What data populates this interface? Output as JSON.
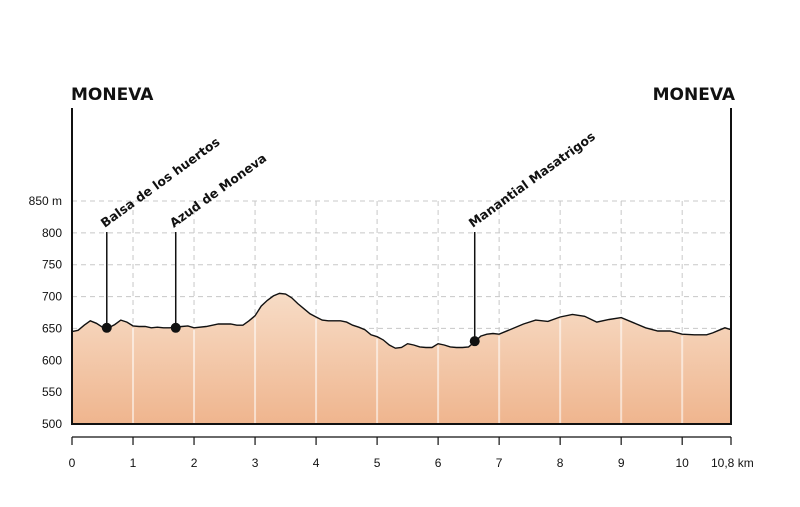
{
  "chart_data": {
    "type": "area",
    "title": "",
    "xlabel": "",
    "ylabel": "",
    "start_label": "MONEVA",
    "end_label": "MONEVA",
    "xlim": [
      0,
      10.8
    ],
    "ylim": [
      500,
      850
    ],
    "x_ticks": [
      {
        "value": 0,
        "label": "0"
      },
      {
        "value": 1,
        "label": "1"
      },
      {
        "value": 2,
        "label": "2"
      },
      {
        "value": 3,
        "label": "3"
      },
      {
        "value": 4,
        "label": "4"
      },
      {
        "value": 5,
        "label": "5"
      },
      {
        "value": 6,
        "label": "6"
      },
      {
        "value": 7,
        "label": "7"
      },
      {
        "value": 8,
        "label": "8"
      },
      {
        "value": 9,
        "label": "9"
      },
      {
        "value": 10,
        "label": "10"
      },
      {
        "value": 10.8,
        "label": "10,8 km"
      }
    ],
    "y_ticks": [
      {
        "value": 500,
        "label": "500"
      },
      {
        "value": 550,
        "label": "550"
      },
      {
        "value": 600,
        "label": "600"
      },
      {
        "value": 650,
        "label": "650"
      },
      {
        "value": 700,
        "label": "700"
      },
      {
        "value": 750,
        "label": "750"
      },
      {
        "value": 800,
        "label": "800"
      },
      {
        "value": 850,
        "label": "850 m"
      }
    ],
    "grid": true,
    "colors": {
      "fill_top": "#f7dcc6",
      "fill_bottom": "#efb58e",
      "line": "#111111",
      "grid": "#c8c8c8"
    },
    "profile": [
      [
        0.0,
        645
      ],
      [
        0.1,
        647
      ],
      [
        0.2,
        655
      ],
      [
        0.3,
        662
      ],
      [
        0.4,
        658
      ],
      [
        0.5,
        652
      ],
      [
        0.6,
        651
      ],
      [
        0.7,
        656
      ],
      [
        0.8,
        663
      ],
      [
        0.9,
        660
      ],
      [
        1.0,
        654
      ],
      [
        1.1,
        653
      ],
      [
        1.2,
        653
      ],
      [
        1.3,
        651
      ],
      [
        1.4,
        652
      ],
      [
        1.5,
        651
      ],
      [
        1.6,
        651
      ],
      [
        1.7,
        652
      ],
      [
        1.8,
        653
      ],
      [
        1.9,
        654
      ],
      [
        2.0,
        651
      ],
      [
        2.2,
        653
      ],
      [
        2.4,
        657
      ],
      [
        2.6,
        657
      ],
      [
        2.7,
        655
      ],
      [
        2.8,
        655
      ],
      [
        2.9,
        662
      ],
      [
        3.0,
        670
      ],
      [
        3.1,
        685
      ],
      [
        3.2,
        694
      ],
      [
        3.3,
        701
      ],
      [
        3.4,
        705
      ],
      [
        3.5,
        704
      ],
      [
        3.6,
        698
      ],
      [
        3.7,
        689
      ],
      [
        3.8,
        681
      ],
      [
        3.9,
        673
      ],
      [
        4.0,
        668
      ],
      [
        4.1,
        663
      ],
      [
        4.2,
        662
      ],
      [
        4.4,
        662
      ],
      [
        4.5,
        660
      ],
      [
        4.6,
        655
      ],
      [
        4.7,
        652
      ],
      [
        4.8,
        648
      ],
      [
        4.9,
        640
      ],
      [
        5.0,
        637
      ],
      [
        5.1,
        632
      ],
      [
        5.2,
        624
      ],
      [
        5.3,
        619
      ],
      [
        5.4,
        620
      ],
      [
        5.5,
        626
      ],
      [
        5.6,
        624
      ],
      [
        5.7,
        621
      ],
      [
        5.8,
        620
      ],
      [
        5.9,
        620
      ],
      [
        6.0,
        626
      ],
      [
        6.1,
        624
      ],
      [
        6.2,
        621
      ],
      [
        6.3,
        620
      ],
      [
        6.4,
        620
      ],
      [
        6.5,
        621
      ],
      [
        6.6,
        629
      ],
      [
        6.7,
        638
      ],
      [
        6.8,
        641
      ],
      [
        6.9,
        642
      ],
      [
        7.0,
        641
      ],
      [
        7.2,
        649
      ],
      [
        7.4,
        657
      ],
      [
        7.6,
        663
      ],
      [
        7.8,
        661
      ],
      [
        8.0,
        668
      ],
      [
        8.2,
        672
      ],
      [
        8.4,
        669
      ],
      [
        8.6,
        660
      ],
      [
        8.8,
        664
      ],
      [
        9.0,
        667
      ],
      [
        9.2,
        659
      ],
      [
        9.4,
        651
      ],
      [
        9.6,
        646
      ],
      [
        9.8,
        646
      ],
      [
        10.0,
        641
      ],
      [
        10.2,
        640
      ],
      [
        10.4,
        640
      ],
      [
        10.5,
        643
      ],
      [
        10.6,
        647
      ],
      [
        10.7,
        651
      ],
      [
        10.8,
        648
      ]
    ],
    "annotations": [
      {
        "label": "Balsa de los huertos",
        "x": 0.57,
        "y": 651
      },
      {
        "label": "Azud de Moneva",
        "x": 1.7,
        "y": 651
      },
      {
        "label": "Manantial Masatrigos",
        "x": 6.6,
        "y": 630
      }
    ]
  }
}
